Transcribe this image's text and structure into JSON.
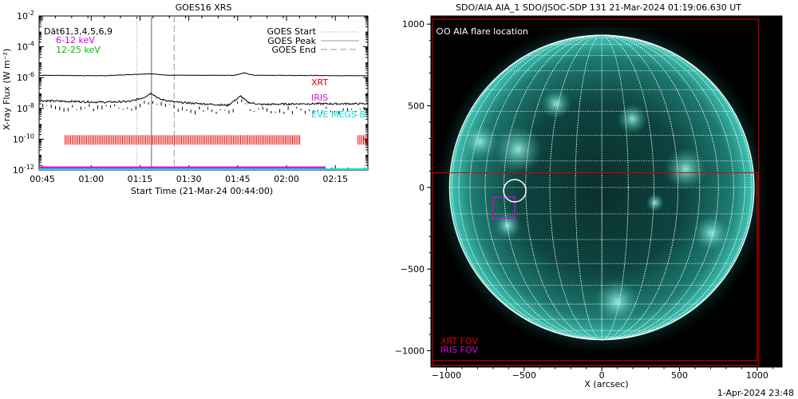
{
  "chart_data": [
    {
      "type": "line",
      "title": "GOES16 XRS",
      "xlabel": "Start Time (21-Mar-24 00:44:00)",
      "ylabel": "X-ray Flux (W m⁻²)",
      "x_ticks": [
        "00:45",
        "01:00",
        "01:15",
        "01:30",
        "01:45",
        "02:00",
        "02:15"
      ],
      "x_tick_minutes": [
        1,
        16,
        31,
        46,
        61,
        76,
        91
      ],
      "xlim_minutes": [
        0,
        101
      ],
      "y_log": true,
      "ylim_exp": [
        -12,
        -2
      ],
      "y_tick_exps": [
        -12,
        -10,
        -8,
        -6,
        -4,
        -2
      ],
      "y_tick_base": "10",
      "legend_left": {
        "channels": "Dät61,3,4,5,6,9",
        "low_band": "6-12 keV",
        "high_band": "12-25 keV",
        "low_color": "#e000e0",
        "high_color": "#00c000"
      },
      "legend_right": {
        "start": "GOES Start",
        "peak": "GOES Peak",
        "end": "GOES End"
      },
      "markers_minutes": {
        "start": 30,
        "peak": 34.5,
        "end": 41.5
      },
      "instrument_labels": {
        "xrt": "XRT",
        "iris": "IRIS",
        "eve": "EVE MEGS-B",
        "xrt_color": "#e00000",
        "iris_color": "#e000e0",
        "eve_color": "#00e0e0"
      },
      "series": [
        {
          "name": "6-12 keV",
          "x_minutes": [
            0,
            20,
            34,
            40,
            60,
            63,
            66,
            101
          ],
          "log_values": [
            -5.85,
            -5.88,
            -5.75,
            -5.85,
            -5.85,
            -5.7,
            -5.85,
            -5.88
          ]
        },
        {
          "name": "12-25 keV",
          "x_minutes": [
            0,
            10,
            20,
            28,
            32,
            34.5,
            37,
            42,
            50,
            58,
            62,
            64,
            68,
            80,
            101
          ],
          "log_values": [
            -7.5,
            -7.55,
            -7.6,
            -7.55,
            -7.3,
            -7.0,
            -7.4,
            -7.6,
            -7.7,
            -7.8,
            -7.2,
            -7.6,
            -7.75,
            -7.7,
            -7.7
          ]
        }
      ],
      "coverage_minutes": {
        "xrt": [
          [
            8,
            80.5
          ],
          [
            98,
            101
          ]
        ],
        "iris": [
          [
            0,
            88
          ]
        ],
        "eve": [
          [
            0,
            101
          ]
        ]
      }
    },
    {
      "type": "image",
      "title": "SDO/AIA AIA_1 SDO/JSOC-SDP 131 21-Mar-2024 01:19:06.630 UT",
      "xlabel": "X (arcsec)",
      "x_ticks": [
        "−1000",
        "−500",
        "0",
        "500",
        "1000"
      ],
      "y_ticks": [
        "1000",
        "500",
        "0",
        "−500",
        "−1000"
      ],
      "xlim": [
        -1100,
        1160
      ],
      "ylim": [
        -1100,
        1050
      ],
      "legend": "O AIA flare location",
      "fov_labels": {
        "xrt": "XRT FOV",
        "iris": "IRIS FOV"
      },
      "flare_location": [
        -560,
        -20
      ],
      "xrt_fov": {
        "x": [
          -1090,
          1010
        ],
        "y": [
          -1090,
          1030
        ]
      },
      "xrt_fov2": {
        "x": [
          -1090,
          1000
        ],
        "y": [
          -1060,
          90
        ]
      },
      "iris_fov": {
        "x": [
          -700,
          -560
        ],
        "y": [
          -190,
          -60
        ]
      },
      "solar_radius": 980,
      "timestamp": "1-Apr-2024 23:48"
    }
  ]
}
